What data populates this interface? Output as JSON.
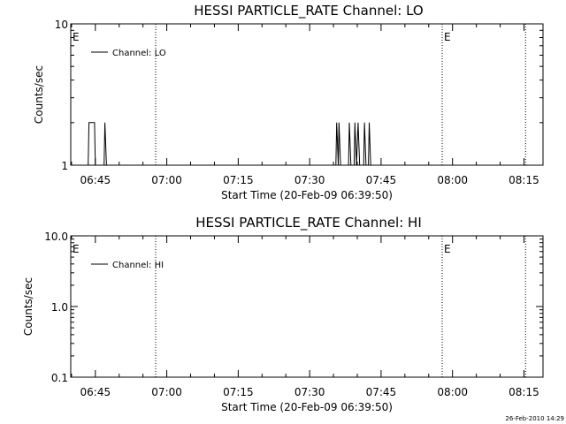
{
  "chart_data": [
    {
      "type": "line",
      "title": "HESSI PARTICLE_RATE Channel: LO",
      "xlabel": "Start Time (20-Feb-09 06:39:50)",
      "ylabel": "Counts/sec",
      "yscale": "log",
      "ylim": [
        1,
        10
      ],
      "y_tick_labels": [
        "1",
        "10"
      ],
      "x_range": [
        "06:39:50",
        "08:19:00"
      ],
      "x_tick_labels": [
        "06:45",
        "07:00",
        "07:15",
        "07:30",
        "07:45",
        "08:00",
        "08:15"
      ],
      "legend": {
        "placement": "top-left",
        "entries": [
          "Channel: LO"
        ]
      },
      "event_markers": [
        {
          "time": "06:39:50",
          "label": "E",
          "line": false
        },
        {
          "time": "06:57:40",
          "label": "",
          "line": true
        },
        {
          "time": "07:57:50",
          "label": "E",
          "line": true
        },
        {
          "time": "08:15:20",
          "label": "",
          "line": true
        }
      ],
      "series": [
        {
          "points": [
            [
              "06:43:30",
              1
            ],
            [
              "06:43:40",
              2
            ],
            [
              "06:44:50",
              2
            ],
            [
              "06:45:00",
              1
            ],
            [
              "06:46:50",
              1
            ],
            [
              "06:47:00",
              2
            ],
            [
              "06:47:20",
              1
            ],
            [
              "07:35:30",
              1
            ],
            [
              "07:35:40",
              2
            ],
            [
              "07:36:00",
              1
            ],
            [
              "07:36:10",
              2
            ],
            [
              "07:36:30",
              1
            ],
            [
              "07:38:10",
              1
            ],
            [
              "07:38:20",
              2
            ],
            [
              "07:38:40",
              1
            ],
            [
              "07:39:20",
              1
            ],
            [
              "07:39:30",
              2
            ],
            [
              "07:39:50",
              1
            ],
            [
              "07:40:10",
              2
            ],
            [
              "07:40:30",
              1
            ],
            [
              "07:41:20",
              1
            ],
            [
              "07:41:30",
              2
            ],
            [
              "07:41:50",
              1
            ],
            [
              "07:42:20",
              1
            ],
            [
              "07:42:30",
              2
            ],
            [
              "07:42:50",
              1
            ]
          ]
        }
      ]
    },
    {
      "type": "line",
      "title": "HESSI PARTICLE_RATE Channel: HI",
      "xlabel": "Start Time (20-Feb-09 06:39:50)",
      "ylabel": "Counts/sec",
      "yscale": "log",
      "ylim": [
        0.1,
        10
      ],
      "y_tick_labels": [
        "0.1",
        "1.0",
        "10.0"
      ],
      "x_range": [
        "06:39:50",
        "08:19:00"
      ],
      "x_tick_labels": [
        "06:45",
        "07:00",
        "07:15",
        "07:30",
        "07:45",
        "08:00",
        "08:15"
      ],
      "legend": {
        "placement": "top-left",
        "entries": [
          "Channel: HI"
        ]
      },
      "event_markers": [
        {
          "time": "06:39:50",
          "label": "E",
          "line": false
        },
        {
          "time": "06:57:40",
          "label": "",
          "line": true
        },
        {
          "time": "07:57:50",
          "label": "E",
          "line": true
        },
        {
          "time": "08:15:20",
          "label": "",
          "line": true
        }
      ],
      "series": [
        {
          "points": []
        }
      ]
    }
  ],
  "footer": {
    "timestamp": "26-Feb-2010 14:29"
  }
}
